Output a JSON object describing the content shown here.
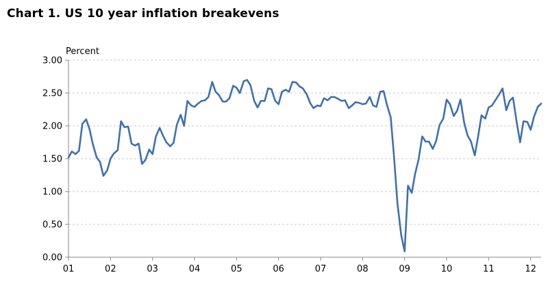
{
  "chart_data": {
    "type": "line",
    "title": "Chart 1.  US 10 year inflation breakevens",
    "ylabel": "Percent",
    "xlabel": "",
    "ylim": [
      0,
      3
    ],
    "xlim": [
      2001.0,
      2012.25
    ],
    "y_ticks": [
      "0.00",
      "0.50",
      "1.00",
      "1.50",
      "2.00",
      "2.50",
      "3.00"
    ],
    "x_ticks": [
      {
        "label": "01",
        "x": 2001
      },
      {
        "label": "02",
        "x": 2002
      },
      {
        "label": "03",
        "x": 2003
      },
      {
        "label": "04",
        "x": 2004
      },
      {
        "label": "05",
        "x": 2005
      },
      {
        "label": "06",
        "x": 2006
      },
      {
        "label": "07",
        "x": 2007
      },
      {
        "label": "08",
        "x": 2008
      },
      {
        "label": "09",
        "x": 2009
      },
      {
        "label": "10",
        "x": 2010
      },
      {
        "label": "11",
        "x": 2011
      },
      {
        "label": "12",
        "x": 2012
      }
    ],
    "grid": "horizontal dashed",
    "colors": {
      "line": "#3f6fb0",
      "grid": "#c8c8c8",
      "axis": "#888888"
    },
    "series": [
      {
        "x": [
          2001.0,
          2001.08,
          2001.17,
          2001.25,
          2001.33,
          2001.42,
          2001.5,
          2001.58,
          2001.67,
          2001.75,
          2001.83,
          2001.92,
          2002.0,
          2002.08,
          2002.17,
          2002.25,
          2002.33,
          2002.42,
          2002.5,
          2002.58,
          2002.67,
          2002.75,
          2002.83,
          2002.92,
          2003.0,
          2003.08,
          2003.17,
          2003.25,
          2003.33,
          2003.42,
          2003.5,
          2003.58,
          2003.67,
          2003.75,
          2003.83,
          2003.92,
          2004.0,
          2004.08,
          2004.17,
          2004.25,
          2004.33,
          2004.42,
          2004.5,
          2004.58,
          2004.67,
          2004.75,
          2004.83,
          2004.92,
          2005.0,
          2005.08,
          2005.17,
          2005.25,
          2005.33,
          2005.42,
          2005.5,
          2005.58,
          2005.67,
          2005.75,
          2005.83,
          2005.92,
          2006.0,
          2006.08,
          2006.17,
          2006.25,
          2006.33,
          2006.42,
          2006.5,
          2006.58,
          2006.67,
          2006.75,
          2006.83,
          2006.92,
          2007.0,
          2007.08,
          2007.17,
          2007.25,
          2007.33,
          2007.42,
          2007.5,
          2007.58,
          2007.67,
          2007.75,
          2007.83,
          2007.92,
          2008.0,
          2008.08,
          2008.17,
          2008.25,
          2008.33,
          2008.42,
          2008.5,
          2008.58,
          2008.67,
          2008.75,
          2008.83,
          2008.92,
          2009.0,
          2009.08,
          2009.17,
          2009.25,
          2009.33,
          2009.42,
          2009.5,
          2009.58,
          2009.67,
          2009.75,
          2009.83,
          2009.92,
          2010.0,
          2010.08,
          2010.17,
          2010.25,
          2010.33,
          2010.42,
          2010.5,
          2010.58,
          2010.67,
          2010.75,
          2010.83,
          2010.92,
          2011.0,
          2011.08,
          2011.17,
          2011.25,
          2011.33,
          2011.42,
          2011.5,
          2011.58,
          2011.67,
          2011.75,
          2011.83,
          2011.92,
          2012.0,
          2012.08,
          2012.17,
          2012.25
        ],
        "values": [
          1.52,
          1.61,
          1.57,
          1.62,
          2.03,
          2.1,
          1.95,
          1.72,
          1.52,
          1.45,
          1.24,
          1.32,
          1.5,
          1.58,
          1.63,
          2.07,
          1.98,
          1.99,
          1.73,
          1.7,
          1.73,
          1.42,
          1.48,
          1.64,
          1.57,
          1.84,
          1.97,
          1.85,
          1.75,
          1.69,
          1.74,
          2.02,
          2.17,
          2.0,
          2.38,
          2.31,
          2.29,
          2.34,
          2.38,
          2.39,
          2.44,
          2.67,
          2.52,
          2.47,
          2.37,
          2.37,
          2.42,
          2.61,
          2.58,
          2.5,
          2.68,
          2.7,
          2.62,
          2.38,
          2.28,
          2.38,
          2.38,
          2.57,
          2.56,
          2.38,
          2.33,
          2.52,
          2.55,
          2.52,
          2.67,
          2.66,
          2.6,
          2.57,
          2.48,
          2.35,
          2.27,
          2.31,
          2.3,
          2.42,
          2.39,
          2.44,
          2.44,
          2.41,
          2.38,
          2.39,
          2.27,
          2.31,
          2.36,
          2.35,
          2.33,
          2.34,
          2.44,
          2.31,
          2.29,
          2.52,
          2.53,
          2.32,
          2.13,
          1.52,
          0.82,
          0.33,
          0.09,
          1.09,
          0.98,
          1.27,
          1.48,
          1.84,
          1.76,
          1.76,
          1.65,
          1.77,
          2.01,
          2.11,
          2.4,
          2.33,
          2.15,
          2.23,
          2.4,
          2.04,
          1.85,
          1.76,
          1.55,
          1.84,
          2.16,
          2.11,
          2.28,
          2.31,
          2.4,
          2.48,
          2.57,
          2.24,
          2.38,
          2.43,
          2.05,
          1.75,
          2.07,
          2.06,
          1.94,
          2.14,
          2.29,
          2.34
        ]
      }
    ]
  }
}
